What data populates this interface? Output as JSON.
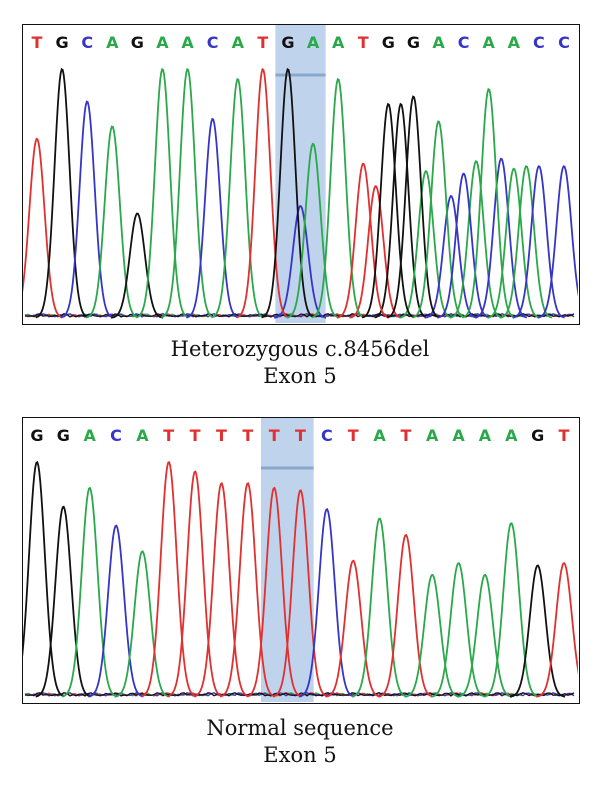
{
  "colors": {
    "A": "#2aa84a",
    "C": "#3535c8",
    "G": "#111111",
    "T": "#e03030",
    "highlight": "#a9c4e6"
  },
  "panels": [
    {
      "id": "top",
      "bases": [
        "T",
        "G",
        "C",
        "A",
        "G",
        "A",
        "A",
        "C",
        "A",
        "T",
        "G",
        "A",
        "A",
        "T",
        "G",
        "G",
        "A",
        "C",
        "A",
        "A",
        "C",
        "C"
      ],
      "peak_heights": [
        0.72,
        1.0,
        0.87,
        0.77,
        0.42,
        1.0,
        1.0,
        0.8,
        0.96,
        1.0,
        1.0,
        0.7,
        0.96,
        0.62,
        0.86,
        0.89,
        0.79,
        0.58,
        0.92,
        0.6,
        0.61,
        0.61
      ],
      "secondary_peaks": [
        {
          "after_index": 10,
          "base": "C",
          "height": 0.45
        },
        {
          "after_index": 13,
          "base": "T",
          "height": 0.53
        },
        {
          "after_index": 14,
          "base": "G",
          "height": 0.86
        },
        {
          "after_index": 15,
          "base": "A",
          "height": 0.59
        },
        {
          "after_index": 16,
          "base": "C",
          "height": 0.49
        },
        {
          "after_index": 17,
          "base": "A",
          "height": 0.63
        },
        {
          "after_index": 18,
          "base": "C",
          "height": 0.64
        },
        {
          "after_index": 19,
          "base": "A",
          "height": 0.61
        }
      ],
      "highlight_bases": [
        10,
        11
      ],
      "caption_lines": [
        "Heterozygous c.8456del",
        "Exon 5"
      ]
    },
    {
      "id": "bottom",
      "bases": [
        "G",
        "G",
        "A",
        "C",
        "A",
        "T",
        "T",
        "T",
        "T",
        "T",
        "T",
        "C",
        "T",
        "A",
        "T",
        "A",
        "A",
        "A",
        "A",
        "G",
        "T"
      ],
      "peak_heights": [
        1.0,
        0.81,
        0.89,
        0.73,
        0.62,
        1.0,
        0.96,
        0.91,
        0.91,
        0.89,
        0.88,
        0.8,
        0.58,
        0.76,
        0.69,
        0.52,
        0.57,
        0.52,
        0.74,
        0.56,
        0.57
      ],
      "secondary_peaks": [],
      "highlight_bases": [
        9,
        10
      ],
      "caption_lines": [
        "Normal sequence",
        "Exon 5"
      ]
    }
  ]
}
